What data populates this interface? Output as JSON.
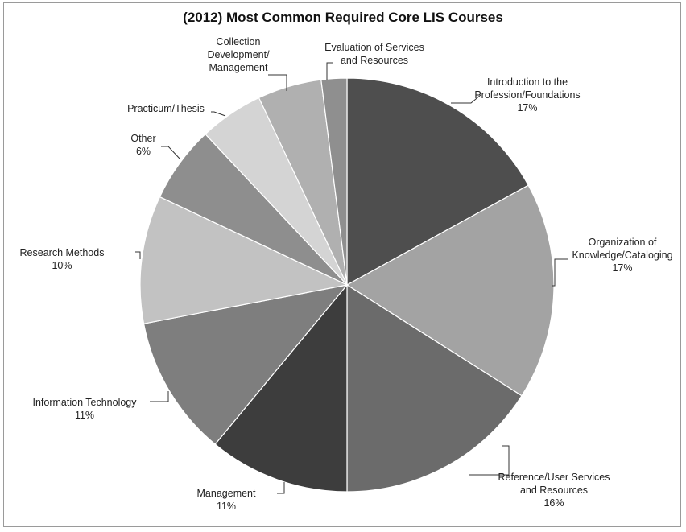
{
  "chart_data": {
    "type": "pie",
    "title": "(2012) Most Common Required Core LIS Courses",
    "slices": [
      {
        "label_lines": [
          "Introduction to the",
          "Profession/Foundations"
        ],
        "pct_label": "17%",
        "value": 17,
        "color": "#4e4e4e"
      },
      {
        "label_lines": [
          "Organization of",
          "Knowledge/Cataloging"
        ],
        "pct_label": "17%",
        "value": 17,
        "color": "#a3a3a3"
      },
      {
        "label_lines": [
          "Reference/User Services",
          "and Resources"
        ],
        "pct_label": "16%",
        "value": 16,
        "color": "#6b6b6b"
      },
      {
        "label_lines": [
          "Management"
        ],
        "pct_label": "11%",
        "value": 11,
        "color": "#3d3d3d"
      },
      {
        "label_lines": [
          "Information Technology"
        ],
        "pct_label": "11%",
        "value": 11,
        "color": "#7e7e7e"
      },
      {
        "label_lines": [
          "Research Methods"
        ],
        "pct_label": "10%",
        "value": 10,
        "color": "#c2c2c2"
      },
      {
        "label_lines": [
          "Other"
        ],
        "pct_label": "6%",
        "value": 6,
        "color": "#8e8e8e"
      },
      {
        "label_lines": [
          "Practicum/Thesis"
        ],
        "pct_label": "",
        "value": 5,
        "color": "#d4d4d4"
      },
      {
        "label_lines": [
          "Collection",
          "Development/",
          "Management"
        ],
        "pct_label": "",
        "value": 5,
        "color": "#b0b0b0"
      },
      {
        "label_lines": [
          "Evaluation of Services",
          "and Resources"
        ],
        "pct_label": "",
        "value": 2,
        "color": "#8f8f8f"
      }
    ]
  }
}
